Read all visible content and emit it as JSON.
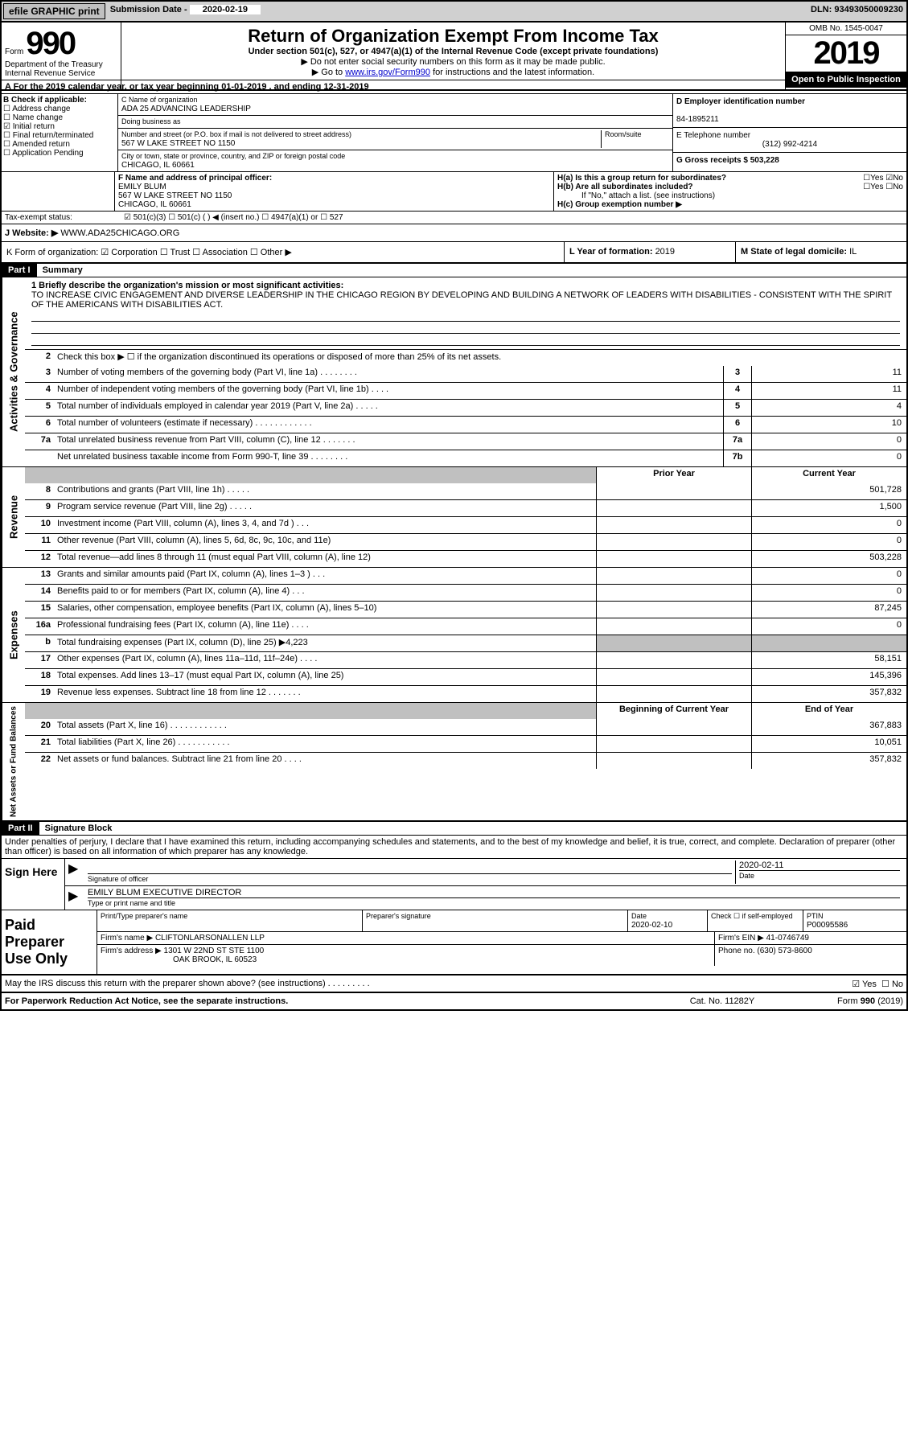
{
  "topbar": {
    "efile": "efile GRAPHIC print",
    "submission_label": "Submission Date - ",
    "submission_date": "2020-02-19",
    "dln_label": "DLN: ",
    "dln": "93493050009230"
  },
  "header": {
    "form_prefix": "Form",
    "form_number": "990",
    "title": "Return of Organization Exempt From Income Tax",
    "subtitle": "Under section 501(c), 527, or 4947(a)(1) of the Internal Revenue Code (except private foundations)",
    "instr1": "▶ Do not enter social security numbers on this form as it may be made public.",
    "instr2_prefix": "▶ Go to ",
    "instr2_link": "www.irs.gov/Form990",
    "instr2_suffix": " for instructions and the latest information.",
    "omb": "OMB No. 1545-0047",
    "year": "2019",
    "open": "Open to Public Inspection",
    "dept1": "Department of the Treasury",
    "dept2": "Internal Revenue Service"
  },
  "lineA": "A For the 2019 calendar year, or tax year beginning 01-01-2019   , and ending 12-31-2019",
  "sectionB": {
    "label": "B Check if applicable:",
    "opts": [
      "Address change",
      "Name change",
      "Initial return",
      "Final return/terminated",
      "Amended return",
      "Application Pending"
    ],
    "checked_index": 2
  },
  "sectionC": {
    "name_label": "C Name of organization",
    "name": "ADA 25 ADVANCING LEADERSHIP",
    "dba_label": "Doing business as",
    "addr_label": "Number and street (or P.O. box if mail is not delivered to street address)",
    "room_label": "Room/suite",
    "addr": "567 W LAKE STREET NO 1150",
    "city_label": "City or town, state or province, country, and ZIP or foreign postal code",
    "city": "CHICAGO, IL  60661"
  },
  "sectionD": {
    "ein_label": "D Employer identification number",
    "ein": "84-1895211",
    "phone_label": "E Telephone number",
    "phone": "(312) 992-4214",
    "gross_label": "G Gross receipts $ ",
    "gross": "503,228"
  },
  "sectionF": {
    "label": "F  Name and address of principal officer:",
    "name": "EMILY BLUM",
    "addr1": "567 W LAKE STREET NO 1150",
    "addr2": "CHICAGO, IL  60661"
  },
  "sectionH": {
    "a": "H(a)  Is this a group return for subordinates?",
    "a_no": "No",
    "b": "H(b)  Are all subordinates included?",
    "note": "If \"No,\" attach a list. (see instructions)",
    "c": "H(c)  Group exemption number ▶"
  },
  "taxStatus": {
    "label": "Tax-exempt status:",
    "opts": "501(c)(3)    ☐ 501(c) (  ) ◀ (insert no.)    ☐ 4947(a)(1) or   ☐ 527"
  },
  "website": {
    "label": "J  Website: ▶",
    "value": "WWW.ADA25CHICAGO.ORG"
  },
  "rowK": {
    "k": "K Form of organization:  ☑ Corporation  ☐ Trust  ☐ Association  ☐ Other ▶",
    "l_label": "L Year of formation: ",
    "l_val": "2019",
    "m_label": "M State of legal domicile: ",
    "m_val": "IL"
  },
  "part1": {
    "header": "Part I",
    "title": "Summary",
    "line1_label": "1  Briefly describe the organization's mission or most significant activities:",
    "mission": "TO INCREASE CIVIC ENGAGEMENT AND DIVERSE LEADERSHIP IN THE CHICAGO REGION BY DEVELOPING AND BUILDING A NETWORK OF LEADERS WITH DISABILITIES - CONSISTENT WITH THE SPIRIT OF THE AMERICANS WITH DISABILITIES ACT.",
    "line2": "Check this box ▶ ☐  if the organization discontinued its operations or disposed of more than 25% of its net assets."
  },
  "governance_rows": [
    {
      "n": "3",
      "d": "Number of voting members of the governing body (Part VI, line 1a)  .   .   .   .   .   .   .   .",
      "ln": "3",
      "v": "11"
    },
    {
      "n": "4",
      "d": "Number of independent voting members of the governing body (Part VI, line 1b)  .   .   .   .",
      "ln": "4",
      "v": "11"
    },
    {
      "n": "5",
      "d": "Total number of individuals employed in calendar year 2019 (Part V, line 2a)  .   .   .   .   .",
      "ln": "5",
      "v": "4"
    },
    {
      "n": "6",
      "d": "Total number of volunteers (estimate if necessary)   .   .   .   .   .   .   .   .   .   .   .   .",
      "ln": "6",
      "v": "10"
    },
    {
      "n": "7a",
      "d": "Total unrelated business revenue from Part VIII, column (C), line 12  .   .   .   .   .   .   .",
      "ln": "7a",
      "v": "0"
    },
    {
      "n": "",
      "d": "Net unrelated business taxable income from Form 990-T, line 39   .   .   .   .   .   .   .   .",
      "ln": "7b",
      "v": "0"
    }
  ],
  "col_headers": {
    "prior": "Prior Year",
    "current": "Current Year"
  },
  "revenue_rows": [
    {
      "n": "8",
      "d": "Contributions and grants (Part VIII, line 1h)   .   .   .   .   .",
      "p": "",
      "c": "501,728"
    },
    {
      "n": "9",
      "d": "Program service revenue (Part VIII, line 2g)   .   .   .   .   .",
      "p": "",
      "c": "1,500"
    },
    {
      "n": "10",
      "d": "Investment income (Part VIII, column (A), lines 3, 4, and 7d )   .   .   .",
      "p": "",
      "c": "0"
    },
    {
      "n": "11",
      "d": "Other revenue (Part VIII, column (A), lines 5, 6d, 8c, 9c, 10c, and 11e)",
      "p": "",
      "c": "0"
    },
    {
      "n": "12",
      "d": "Total revenue—add lines 8 through 11 (must equal Part VIII, column (A), line 12)",
      "p": "",
      "c": "503,228"
    }
  ],
  "expense_rows": [
    {
      "n": "13",
      "d": "Grants and similar amounts paid (Part IX, column (A), lines 1–3 )  .   .   .",
      "p": "",
      "c": "0"
    },
    {
      "n": "14",
      "d": "Benefits paid to or for members (Part IX, column (A), line 4)   .   .   .",
      "p": "",
      "c": "0"
    },
    {
      "n": "15",
      "d": "Salaries, other compensation, employee benefits (Part IX, column (A), lines 5–10)",
      "p": "",
      "c": "87,245"
    },
    {
      "n": "16a",
      "d": "Professional fundraising fees (Part IX, column (A), line 11e)   .   .   .   .",
      "p": "",
      "c": "0"
    },
    {
      "n": "b",
      "d": "Total fundraising expenses (Part IX, column (D), line 25) ▶4,223",
      "p": "GRAY",
      "c": "GRAY"
    },
    {
      "n": "17",
      "d": "Other expenses (Part IX, column (A), lines 11a–11d, 11f–24e)  .   .   .   .",
      "p": "",
      "c": "58,151"
    },
    {
      "n": "18",
      "d": "Total expenses. Add lines 13–17 (must equal Part IX, column (A), line 25)",
      "p": "",
      "c": "145,396"
    },
    {
      "n": "19",
      "d": "Revenue less expenses. Subtract line 18 from line 12  .   .   .   .   .   .   .",
      "p": "",
      "c": "357,832"
    }
  ],
  "netassets_headers": {
    "prior": "Beginning of Current Year",
    "current": "End of Year"
  },
  "netassets_rows": [
    {
      "n": "20",
      "d": "Total assets (Part X, line 16)  .   .   .   .   .   .   .   .   .   .   .   .",
      "p": "",
      "c": "367,883"
    },
    {
      "n": "21",
      "d": "Total liabilities (Part X, line 26)  .   .   .   .   .   .   .   .   .   .   .",
      "p": "",
      "c": "10,051"
    },
    {
      "n": "22",
      "d": "Net assets or fund balances. Subtract line 21 from line 20  .   .   .   .",
      "p": "",
      "c": "357,832"
    }
  ],
  "part2": {
    "header": "Part II",
    "title": "Signature Block",
    "penalty": "Under penalties of perjury, I declare that I have examined this return, including accompanying schedules and statements, and to the best of my knowledge and belief, it is true, correct, and complete. Declaration of preparer (other than officer) is based on all information of which preparer has any knowledge."
  },
  "sign": {
    "side": "Sign Here",
    "sig_label": "Signature of officer",
    "date_label": "Date",
    "date": "2020-02-11",
    "name": "EMILY BLUM  EXECUTIVE DIRECTOR",
    "name_label": "Type or print name and title"
  },
  "prep": {
    "side": "Paid Preparer Use Only",
    "h1": "Print/Type preparer's name",
    "h2": "Preparer's signature",
    "h3_label": "Date",
    "h3": "2020-02-10",
    "h4": "Check ☐ if self-employed",
    "h5_label": "PTIN",
    "h5": "P00095586",
    "firm_label": "Firm's name    ▶",
    "firm": "CLIFTONLARSONALLEN LLP",
    "ein_label": "Firm's EIN ▶",
    "ein": "41-0746749",
    "addr_label": "Firm's address ▶",
    "addr1": "1301 W 22ND ST STE 1100",
    "addr2": "OAK BROOK, IL  60523",
    "phone_label": "Phone no. ",
    "phone": "(630) 573-8600"
  },
  "discuss": {
    "text": "May the IRS discuss this return with the preparer shown above? (see instructions)   .   .   .   .   .   .   .   .   .",
    "yes": "Yes",
    "no": "No"
  },
  "footer": {
    "left": "For Paperwork Reduction Act Notice, see the separate instructions.",
    "mid": "Cat. No. 11282Y",
    "right_prefix": "Form ",
    "right_form": "990",
    "right_suffix": " (2019)"
  },
  "side_labels": {
    "gov": "Activities & Governance",
    "rev": "Revenue",
    "exp": "Expenses",
    "net": "Net Assets or Fund Balances"
  }
}
